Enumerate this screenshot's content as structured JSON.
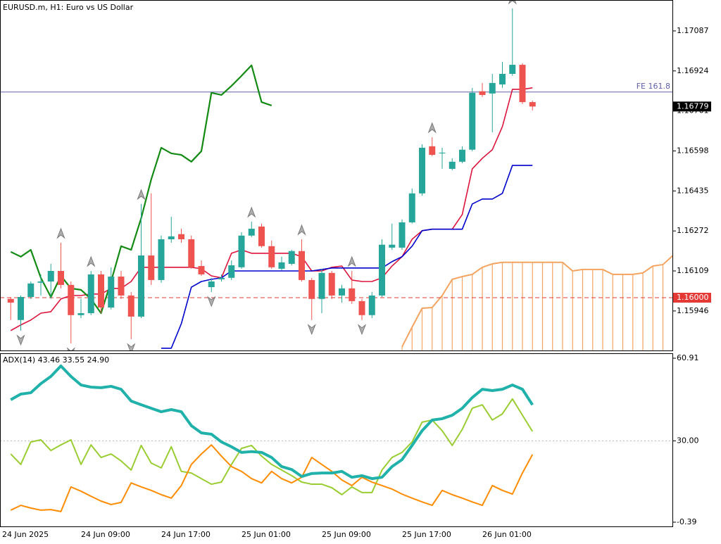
{
  "chart_data": [
    {
      "type": "candlestick",
      "title": "EURUSD.m, H1:  Euro vs US Dollar",
      "up_color": "#26a69a",
      "down_color": "#ef5350",
      "open": [
        1.15995,
        1.15909,
        1.16003,
        1.16061,
        1.16066,
        1.16109,
        1.16052,
        1.15929,
        1.15937,
        1.16095,
        1.1596,
        1.16086,
        1.16009,
        1.15923,
        1.16172,
        1.16072,
        1.16238,
        1.16259,
        1.16238,
        1.16129,
        1.16043,
        1.16075,
        1.16081,
        1.16124,
        1.16253,
        1.1629,
        1.1621,
        1.16118,
        1.16138,
        1.1619,
        1.16072,
        1.15995,
        1.16101,
        1.16009,
        1.16038,
        1.15986,
        1.15929,
        1.16009,
        1.16204,
        1.16204,
        1.16307,
        1.16425,
        1.16617,
        1.16588,
        1.16525,
        1.16554,
        1.16603,
        1.16841,
        1.16832,
        1.16869,
        1.16912,
        1.16949,
        1.16797
      ],
      "high": [
        1.16003,
        1.16009,
        1.16066,
        1.16095,
        1.16138,
        1.16224,
        1.16066,
        1.15995,
        1.16109,
        1.16109,
        1.16124,
        1.16109,
        1.16023,
        1.16382,
        1.16425,
        1.16253,
        1.1633,
        1.16281,
        1.16253,
        1.16152,
        1.16081,
        1.16095,
        1.16152,
        1.16267,
        1.1631,
        1.16302,
        1.16233,
        1.16167,
        1.16195,
        1.16238,
        1.16081,
        1.16118,
        1.16109,
        1.16052,
        1.16109,
        1.15995,
        1.16023,
        1.16238,
        1.16302,
        1.16319,
        1.16445,
        1.16625,
        1.16654,
        1.16611,
        1.16568,
        1.16617,
        1.16855,
        1.16875,
        1.16912,
        1.16961,
        1.17179,
        1.16955,
        1.16803
      ],
      "low": [
        1.15909,
        1.15866,
        1.15995,
        1.16009,
        1.15995,
        1.16038,
        1.15814,
        1.15917,
        1.15929,
        1.15937,
        1.15952,
        1.15995,
        1.15831,
        1.15917,
        1.16052,
        1.16061,
        1.16224,
        1.16224,
        1.16118,
        1.16089,
        1.16023,
        1.16066,
        1.16072,
        1.16118,
        1.16247,
        1.16204,
        1.16118,
        1.16112,
        1.16132,
        1.16066,
        1.15909,
        1.15937,
        1.15995,
        1.1598,
        1.15975,
        1.15909,
        1.15917,
        1.16003,
        1.16195,
        1.16195,
        1.16302,
        1.16416,
        1.16577,
        1.16525,
        1.16519,
        1.16548,
        1.16597,
        1.16818,
        1.16674,
        1.16855,
        1.16904,
        1.16789,
        1.16763
      ],
      "close": [
        1.1598,
        1.16003,
        1.16058,
        1.16066,
        1.16109,
        1.16052,
        1.15929,
        1.15937,
        1.16095,
        1.1596,
        1.16086,
        1.16009,
        1.15923,
        1.16172,
        1.16072,
        1.16238,
        1.1625,
        1.16238,
        1.16124,
        1.16095,
        1.16066,
        1.16081,
        1.16132,
        1.16253,
        1.16281,
        1.1621,
        1.16124,
        1.16144,
        1.1619,
        1.16072,
        1.15995,
        1.16101,
        1.16009,
        1.16038,
        1.15986,
        1.15929,
        1.16009,
        1.16216,
        1.16216,
        1.16307,
        1.16425,
        1.16611,
        1.16582,
        1.16591,
        1.16554,
        1.16603,
        1.16835,
        1.16826,
        1.16875,
        1.16912,
        1.16949,
        1.16797,
        1.16779
      ],
      "lines": [
        {
          "color": "#dc143c",
          "values": [
            1.15866,
            1.15889,
            1.15909,
            1.15937,
            1.15943,
            1.15995,
            1.16009,
            1.16009,
            1.16015,
            1.16015,
            1.16038,
            1.16038,
            1.16066,
            1.16124,
            1.16124,
            1.16124,
            1.16124,
            1.16124,
            1.16124,
            1.16118,
            1.16089,
            1.16081,
            1.16181,
            1.16195,
            1.16181,
            1.16181,
            1.16181,
            1.16181,
            1.16181,
            1.16167,
            1.16109,
            1.16109,
            1.16124,
            1.16129,
            1.16072,
            1.16066,
            1.16066,
            1.16081,
            1.16129,
            1.16167,
            1.16238,
            1.16273,
            1.16279,
            1.16279,
            1.16279,
            1.16339,
            1.16525,
            1.16568,
            1.16603,
            1.16697,
            1.16849,
            1.16849,
            1.16855
          ]
        },
        {
          "color": "#0000cd",
          "values": [
            null,
            null,
            null,
            null,
            null,
            null,
            null,
            null,
            null,
            null,
            null,
            null,
            null,
            null,
            null,
            1.15794,
            1.15794,
            1.15894,
            1.16043,
            1.16066,
            1.16075,
            1.16081,
            1.16109,
            1.16109,
            1.16109,
            1.16109,
            1.16109,
            1.16109,
            1.16109,
            1.16109,
            1.16109,
            1.16115,
            1.16121,
            1.16121,
            1.16121,
            1.16121,
            1.16121,
            1.16121,
            1.16147,
            1.16167,
            1.1621,
            1.16273,
            1.16279,
            1.16279,
            1.16279,
            1.16279,
            1.16382,
            1.16402,
            1.16402,
            1.16425,
            1.16539,
            1.16539,
            1.16539
          ]
        },
        {
          "color": "#138a13",
          "values": [
            1.16187,
            1.16167,
            1.16195,
            1.16081,
            1.16003,
            1.16089,
            1.16038,
            1.16032,
            1.15995,
            1.15937,
            1.16066,
            1.1621,
            1.16195,
            1.16324,
            1.16482,
            1.16611,
            1.16588,
            1.16582,
            1.16554,
            1.16597,
            1.16835,
            1.16826,
            1.16863,
            1.16904,
            1.16947,
            1.16797,
            1.16783,
            null,
            null,
            null,
            null,
            null,
            null,
            null,
            null,
            null,
            null,
            null,
            null,
            null,
            null,
            null,
            null,
            null,
            null,
            null,
            null,
            null,
            null,
            null,
            null,
            null,
            null
          ]
        }
      ],
      "cloud": {
        "color": "#f4a460",
        "values": [
          null,
          null,
          null,
          null,
          null,
          null,
          null,
          null,
          null,
          null,
          null,
          null,
          null,
          null,
          null,
          null,
          null,
          null,
          null,
          null,
          null,
          null,
          null,
          null,
          null,
          null,
          null,
          null,
          null,
          null,
          null,
          null,
          null,
          null,
          null,
          null,
          null,
          null,
          null,
          1.158,
          1.1588,
          1.15957,
          1.1596,
          1.16009,
          1.16075,
          1.16086,
          1.16095,
          1.16124,
          1.16138,
          1.16144,
          1.16144,
          1.16144,
          1.16144,
          1.16144,
          1.16144,
          1.16144,
          1.16109,
          1.16115,
          1.16115,
          1.16115,
          1.16095,
          1.16095,
          1.16095,
          1.16101,
          1.16129,
          1.16135,
          1.16172
        ]
      },
      "fractals_up": [
        5,
        8,
        13,
        24,
        29,
        34,
        42,
        50
      ],
      "fractals_down": [
        1,
        6,
        12,
        20,
        30,
        35
      ],
      "levels": [
        {
          "value": 1.16838,
          "label": "FE 161.8",
          "color": "#6060a8",
          "placement": "chart"
        },
        {
          "value": 1.16,
          "label": "1.16000",
          "color": "#e53935",
          "placement": "axis",
          "style": "dashed"
        }
      ],
      "last_price": 1.16779,
      "ylim": [
        1.15785,
        1.17213
      ],
      "yticks": [
        1.17087,
        1.16924,
        1.16761,
        1.16598,
        1.16435,
        1.16272,
        1.16109,
        1.15946
      ]
    },
    {
      "type": "line",
      "title": "ADX(14) 43.46 33.55 24.90",
      "categories": [
        "24 Jun 2025",
        null,
        null,
        null,
        null,
        null,
        null,
        "24 Jun 09:00",
        null,
        null,
        null,
        null,
        null,
        null,
        null,
        "24 Jun 17:00",
        null,
        null,
        null,
        null,
        null,
        null,
        null,
        "25 Jun 01:00",
        null,
        null,
        null,
        null,
        null,
        null,
        null,
        "25 Jun 09:00",
        null,
        null,
        null,
        null,
        null,
        null,
        null,
        "25 Jun 17:00",
        null,
        null,
        null,
        null,
        null,
        null,
        null,
        "26 Jun 01:00",
        null,
        null,
        null,
        null,
        null
      ],
      "series": [
        {
          "color": "#20b2aa",
          "values": [
            45.4,
            47.5,
            48.0,
            51.4,
            54.1,
            58.0,
            54.1,
            50.9,
            50.1,
            49.9,
            50.4,
            49.3,
            44.9,
            43.5,
            42.2,
            40.9,
            41.7,
            40.9,
            35.7,
            33.0,
            32.5,
            29.6,
            27.8,
            25.7,
            26.0,
            25.7,
            23.8,
            20.4,
            19.3,
            16.7,
            17.8,
            18.0,
            18.0,
            18.6,
            16.4,
            17.0,
            15.9,
            16.4,
            20.4,
            23.0,
            28.3,
            33.8,
            37.8,
            38.3,
            39.6,
            42.2,
            46.2,
            49.3,
            48.8,
            49.3,
            50.9,
            49.3,
            43.46
          ]
        },
        {
          "color": "#9acd32",
          "values": [
            25.1,
            21.2,
            29.6,
            30.4,
            26.4,
            28.5,
            30.4,
            21.2,
            28.5,
            23.8,
            25.1,
            22.5,
            19.1,
            28.3,
            21.7,
            19.9,
            27.8,
            18.6,
            18.0,
            15.9,
            13.8,
            14.6,
            21.2,
            27.2,
            28.3,
            24.3,
            21.2,
            19.1,
            17.0,
            14.6,
            13.8,
            13.8,
            12.5,
            9.9,
            12.8,
            10.7,
            10.7,
            19.1,
            23.8,
            25.7,
            29.6,
            37.0,
            37.8,
            33.8,
            28.3,
            34.3,
            42.2,
            43.5,
            37.8,
            40.1,
            45.7,
            39.6,
            33.55
          ]
        },
        {
          "color": "#ff8c00",
          "values": [
            4.1,
            5.9,
            4.9,
            4.1,
            4.3,
            3.6,
            12.8,
            11.2,
            9.3,
            7.5,
            6.2,
            7.0,
            14.3,
            12.8,
            11.5,
            9.9,
            8.6,
            13.3,
            21.2,
            25.1,
            28.5,
            24.3,
            20.4,
            18.6,
            15.9,
            14.3,
            18.6,
            15.9,
            14.3,
            16.4,
            23.8,
            21.2,
            18.6,
            15.4,
            13.3,
            16.4,
            14.6,
            13.3,
            12.0,
            10.1,
            8.6,
            7.2,
            5.9,
            11.5,
            9.9,
            8.6,
            7.2,
            5.9,
            13.3,
            11.5,
            10.1,
            18.0,
            24.9
          ]
        }
      ],
      "level_lines": [
        30
      ],
      "ylim": [
        -1.97,
        62.75
      ],
      "yticks": [
        60.91,
        {
          "value": 30,
          "label": "30.00"
        },
        -0.39
      ]
    }
  ]
}
